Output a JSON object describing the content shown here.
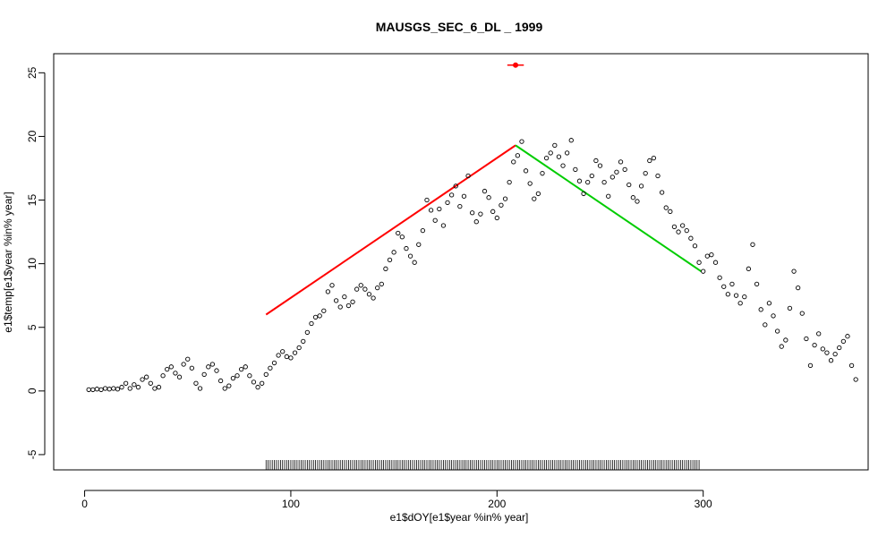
{
  "chart_data": {
    "type": "scatter",
    "title": "MAUSGS_SEC_6_DL _ 1999",
    "xlabel": "e1$dOY[e1$year %in% year]",
    "ylabel": "e1$temp[e1$year %in% year]",
    "xlim": [
      -15,
      380
    ],
    "ylim": [
      -6.2,
      26.5
    ],
    "x_ticks": [
      0,
      100,
      200,
      300
    ],
    "y_ticks": [
      -5,
      0,
      5,
      10,
      15,
      20,
      25
    ],
    "grid": false,
    "legend": "none",
    "colors": {
      "points": "#000000",
      "rising_fit": "#ff0000",
      "falling_fit": "#00cc00",
      "peak_marker": "#ff0000",
      "rug": "#000000"
    },
    "series": [
      {
        "marker": "open-circle",
        "points": [
          [
            2,
            0.1
          ],
          [
            4,
            0.1
          ],
          [
            6,
            0.15
          ],
          [
            8,
            0.1
          ],
          [
            10,
            0.2
          ],
          [
            12,
            0.15
          ],
          [
            14,
            0.2
          ],
          [
            16,
            0.15
          ],
          [
            18,
            0.3
          ],
          [
            20,
            0.6
          ],
          [
            22,
            0.2
          ],
          [
            24,
            0.5
          ],
          [
            26,
            0.3
          ],
          [
            28,
            0.9
          ],
          [
            30,
            1.1
          ],
          [
            32,
            0.6
          ],
          [
            34,
            0.2
          ],
          [
            36,
            0.3
          ],
          [
            38,
            1.2
          ],
          [
            40,
            1.7
          ],
          [
            42,
            1.9
          ],
          [
            44,
            1.4
          ],
          [
            46,
            1.1
          ],
          [
            48,
            2.1
          ],
          [
            50,
            2.5
          ],
          [
            52,
            1.8
          ],
          [
            54,
            0.6
          ],
          [
            56,
            0.2
          ],
          [
            58,
            1.3
          ],
          [
            60,
            1.9
          ],
          [
            62,
            2.1
          ],
          [
            64,
            1.6
          ],
          [
            66,
            0.8
          ],
          [
            68,
            0.2
          ],
          [
            70,
            0.4
          ],
          [
            72,
            1.0
          ],
          [
            74,
            1.2
          ],
          [
            76,
            1.7
          ],
          [
            78,
            1.9
          ],
          [
            80,
            1.2
          ],
          [
            82,
            0.7
          ],
          [
            84,
            0.3
          ],
          [
            86,
            0.6
          ],
          [
            88,
            1.3
          ],
          [
            90,
            1.8
          ],
          [
            92,
            2.2
          ],
          [
            94,
            2.8
          ],
          [
            96,
            3.1
          ],
          [
            98,
            2.7
          ],
          [
            100,
            2.6
          ],
          [
            102,
            3.0
          ],
          [
            104,
            3.4
          ],
          [
            106,
            3.9
          ],
          [
            108,
            4.6
          ],
          [
            110,
            5.3
          ],
          [
            112,
            5.8
          ],
          [
            114,
            5.9
          ],
          [
            116,
            6.3
          ],
          [
            118,
            7.8
          ],
          [
            120,
            8.3
          ],
          [
            122,
            7.1
          ],
          [
            124,
            6.6
          ],
          [
            126,
            7.4
          ],
          [
            128,
            6.7
          ],
          [
            130,
            7.0
          ],
          [
            132,
            8.0
          ],
          [
            134,
            8.3
          ],
          [
            136,
            8.0
          ],
          [
            138,
            7.6
          ],
          [
            140,
            7.3
          ],
          [
            142,
            8.1
          ],
          [
            144,
            8.4
          ],
          [
            146,
            9.6
          ],
          [
            148,
            10.3
          ],
          [
            150,
            10.9
          ],
          [
            152,
            12.4
          ],
          [
            154,
            12.1
          ],
          [
            156,
            11.2
          ],
          [
            158,
            10.6
          ],
          [
            160,
            10.1
          ],
          [
            162,
            11.5
          ],
          [
            164,
            12.6
          ],
          [
            166,
            15.0
          ],
          [
            168,
            14.2
          ],
          [
            170,
            13.4
          ],
          [
            172,
            14.3
          ],
          [
            174,
            13.0
          ],
          [
            176,
            14.8
          ],
          [
            178,
            15.4
          ],
          [
            180,
            16.1
          ],
          [
            182,
            14.5
          ],
          [
            184,
            15.3
          ],
          [
            186,
            16.9
          ],
          [
            188,
            14.0
          ],
          [
            190,
            13.3
          ],
          [
            192,
            13.9
          ],
          [
            194,
            15.7
          ],
          [
            196,
            15.2
          ],
          [
            198,
            14.1
          ],
          [
            200,
            13.6
          ],
          [
            202,
            14.6
          ],
          [
            204,
            15.1
          ],
          [
            206,
            16.4
          ],
          [
            208,
            18.0
          ],
          [
            210,
            18.5
          ],
          [
            212,
            19.6
          ],
          [
            214,
            17.3
          ],
          [
            216,
            16.3
          ],
          [
            218,
            15.1
          ],
          [
            220,
            15.5
          ],
          [
            222,
            17.1
          ],
          [
            224,
            18.3
          ],
          [
            226,
            18.7
          ],
          [
            228,
            19.3
          ],
          [
            230,
            18.4
          ],
          [
            232,
            17.7
          ],
          [
            234,
            18.7
          ],
          [
            236,
            19.7
          ],
          [
            238,
            17.4
          ],
          [
            240,
            16.5
          ],
          [
            242,
            15.5
          ],
          [
            244,
            16.4
          ],
          [
            246,
            16.9
          ],
          [
            248,
            18.1
          ],
          [
            250,
            17.7
          ],
          [
            252,
            16.4
          ],
          [
            254,
            15.3
          ],
          [
            256,
            16.8
          ],
          [
            258,
            17.2
          ],
          [
            260,
            18.0
          ],
          [
            262,
            17.4
          ],
          [
            264,
            16.2
          ],
          [
            266,
            15.2
          ],
          [
            268,
            14.9
          ],
          [
            270,
            16.1
          ],
          [
            272,
            17.1
          ],
          [
            274,
            18.1
          ],
          [
            276,
            18.3
          ],
          [
            278,
            16.9
          ],
          [
            280,
            15.6
          ],
          [
            282,
            14.4
          ],
          [
            284,
            14.1
          ],
          [
            286,
            12.9
          ],
          [
            288,
            12.5
          ],
          [
            290,
            13.0
          ],
          [
            292,
            12.6
          ],
          [
            294,
            12.0
          ],
          [
            296,
            11.4
          ],
          [
            298,
            10.1
          ],
          [
            300,
            9.4
          ],
          [
            302,
            10.6
          ],
          [
            304,
            10.7
          ],
          [
            306,
            10.1
          ],
          [
            308,
            8.9
          ],
          [
            310,
            8.2
          ],
          [
            312,
            7.6
          ],
          [
            314,
            8.4
          ],
          [
            316,
            7.5
          ],
          [
            318,
            6.9
          ],
          [
            320,
            7.4
          ],
          [
            322,
            9.6
          ],
          [
            324,
            11.5
          ],
          [
            326,
            8.4
          ],
          [
            328,
            6.4
          ],
          [
            330,
            5.2
          ],
          [
            332,
            6.9
          ],
          [
            334,
            5.9
          ],
          [
            336,
            4.7
          ],
          [
            338,
            3.5
          ],
          [
            340,
            4.0
          ],
          [
            342,
            6.5
          ],
          [
            344,
            9.4
          ],
          [
            346,
            8.1
          ],
          [
            348,
            6.1
          ],
          [
            350,
            4.1
          ],
          [
            352,
            2.0
          ],
          [
            354,
            3.6
          ],
          [
            356,
            4.5
          ],
          [
            358,
            3.3
          ],
          [
            360,
            3.0
          ],
          [
            362,
            2.4
          ],
          [
            364,
            2.9
          ],
          [
            366,
            3.4
          ],
          [
            368,
            3.9
          ],
          [
            370,
            4.3
          ],
          [
            372,
            2.0
          ],
          [
            374,
            0.9
          ]
        ]
      }
    ],
    "fit_lines": [
      {
        "x": [
          88,
          209
        ],
        "y": [
          6.0,
          19.3
        ]
      },
      {
        "x": [
          209,
          299
        ],
        "y": [
          19.3,
          9.4
        ]
      }
    ],
    "peak_marker": {
      "x": 209,
      "y": 25.6,
      "xerr": [
        205,
        213
      ]
    },
    "rug": {
      "from": 88,
      "to": 298,
      "step": 1
    }
  }
}
